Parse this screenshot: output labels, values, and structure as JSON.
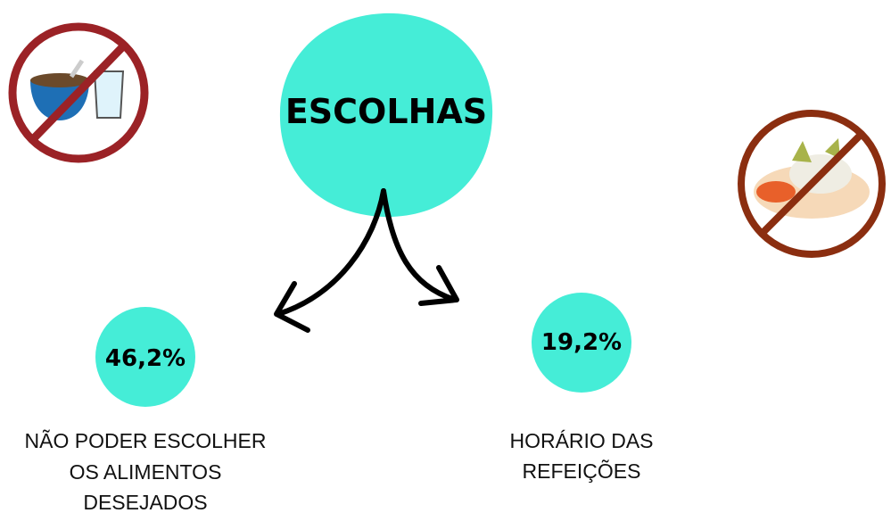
{
  "title": "ESCOLHAS",
  "items": [
    {
      "value": "46,2%",
      "label_lines": [
        "NÃO PODER ESCOLHER",
        "OS ALIMENTOS",
        "DESEJADOS"
      ]
    },
    {
      "value": "19,2%",
      "label_lines": [
        "HORÁRIO DAS",
        "REFEIÇÕES"
      ]
    }
  ]
}
